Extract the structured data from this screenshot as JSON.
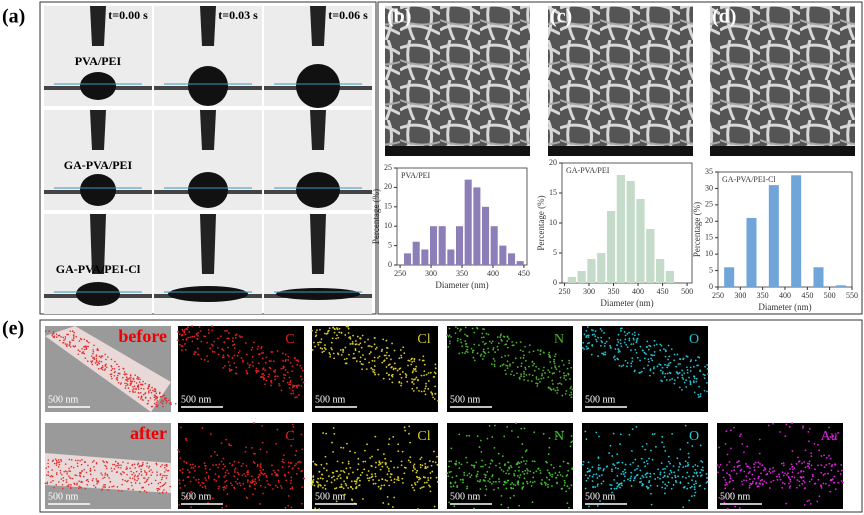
{
  "panel_a": {
    "label": "(a)",
    "times": [
      "t=0.00 s",
      "t=0.03 s",
      "t=0.06 s"
    ],
    "samples": [
      "PVA/PEI",
      "GA-PVA/PEI",
      "GA-PVA/PEI-Cl"
    ]
  },
  "panel_labels": [
    "(b)",
    "(c)",
    "(d)"
  ],
  "chart_data": [
    {
      "type": "histogram",
      "title": "PVA/PEI",
      "xlabel": "Diameter (nm)",
      "ylabel": "Percentage (%)",
      "color": "#8c7fb8",
      "bins": [
        255,
        269,
        283,
        297,
        311,
        325,
        339,
        353,
        367,
        381,
        395,
        409,
        423,
        437,
        451
      ],
      "values": [
        3,
        6,
        4,
        10,
        10,
        4,
        10,
        22,
        20,
        15,
        10,
        5,
        3,
        1
      ],
      "xlim": [
        245,
        455
      ],
      "ylim": [
        0,
        25
      ],
      "xticks": [
        250,
        300,
        350,
        400,
        450
      ],
      "yticks": [
        0,
        5,
        10,
        15,
        20,
        25
      ]
    },
    {
      "type": "histogram",
      "title": "GA-PVA/PEI",
      "xlabel": "Diameter (nm)",
      "ylabel": "Percentage (%)",
      "color": "#c5dbc9",
      "bins": [
        255,
        275,
        295,
        315,
        335,
        355,
        375,
        395,
        415,
        435,
        455,
        475
      ],
      "values": [
        1,
        2,
        4,
        5,
        12,
        18,
        17,
        14,
        9,
        4,
        2
      ],
      "xlim": [
        245,
        510
      ],
      "ylim": [
        0,
        20
      ],
      "xticks": [
        250,
        300,
        350,
        400,
        450,
        500
      ],
      "yticks": [
        0,
        5,
        10,
        15,
        20
      ]
    },
    {
      "type": "histogram",
      "title": "GA-PVA/PEI-Cl",
      "xlabel": "Diameter (nm)",
      "ylabel": "Percentage (%)",
      "color": "#6fa5d9",
      "bins": [
        262,
        288,
        312,
        338,
        362,
        388,
        412,
        438,
        462,
        488,
        512,
        538
      ],
      "values": [
        6,
        0,
        21,
        0,
        31,
        0,
        34,
        0,
        6,
        0,
        0.5
      ],
      "xlim": [
        250,
        550
      ],
      "ylim": [
        0,
        35
      ],
      "xticks": [
        250,
        300,
        350,
        400,
        450,
        500,
        550
      ],
      "yticks": [
        0,
        5,
        10,
        15,
        20,
        25,
        30,
        35
      ]
    }
  ],
  "panel_e": {
    "label": "(e)",
    "scale_bar": "500 nm",
    "rows": [
      {
        "state": "before",
        "elements": [
          "C",
          "Cl",
          "N",
          "O"
        ],
        "colors": [
          "#e02020",
          "#d8c830",
          "#4cb030",
          "#20c0d0"
        ]
      },
      {
        "state": "after",
        "elements": [
          "C",
          "Cl",
          "N",
          "O",
          "Au"
        ],
        "colors": [
          "#e02020",
          "#d8d020",
          "#40c030",
          "#20c8d8",
          "#e020e0"
        ]
      }
    ]
  }
}
